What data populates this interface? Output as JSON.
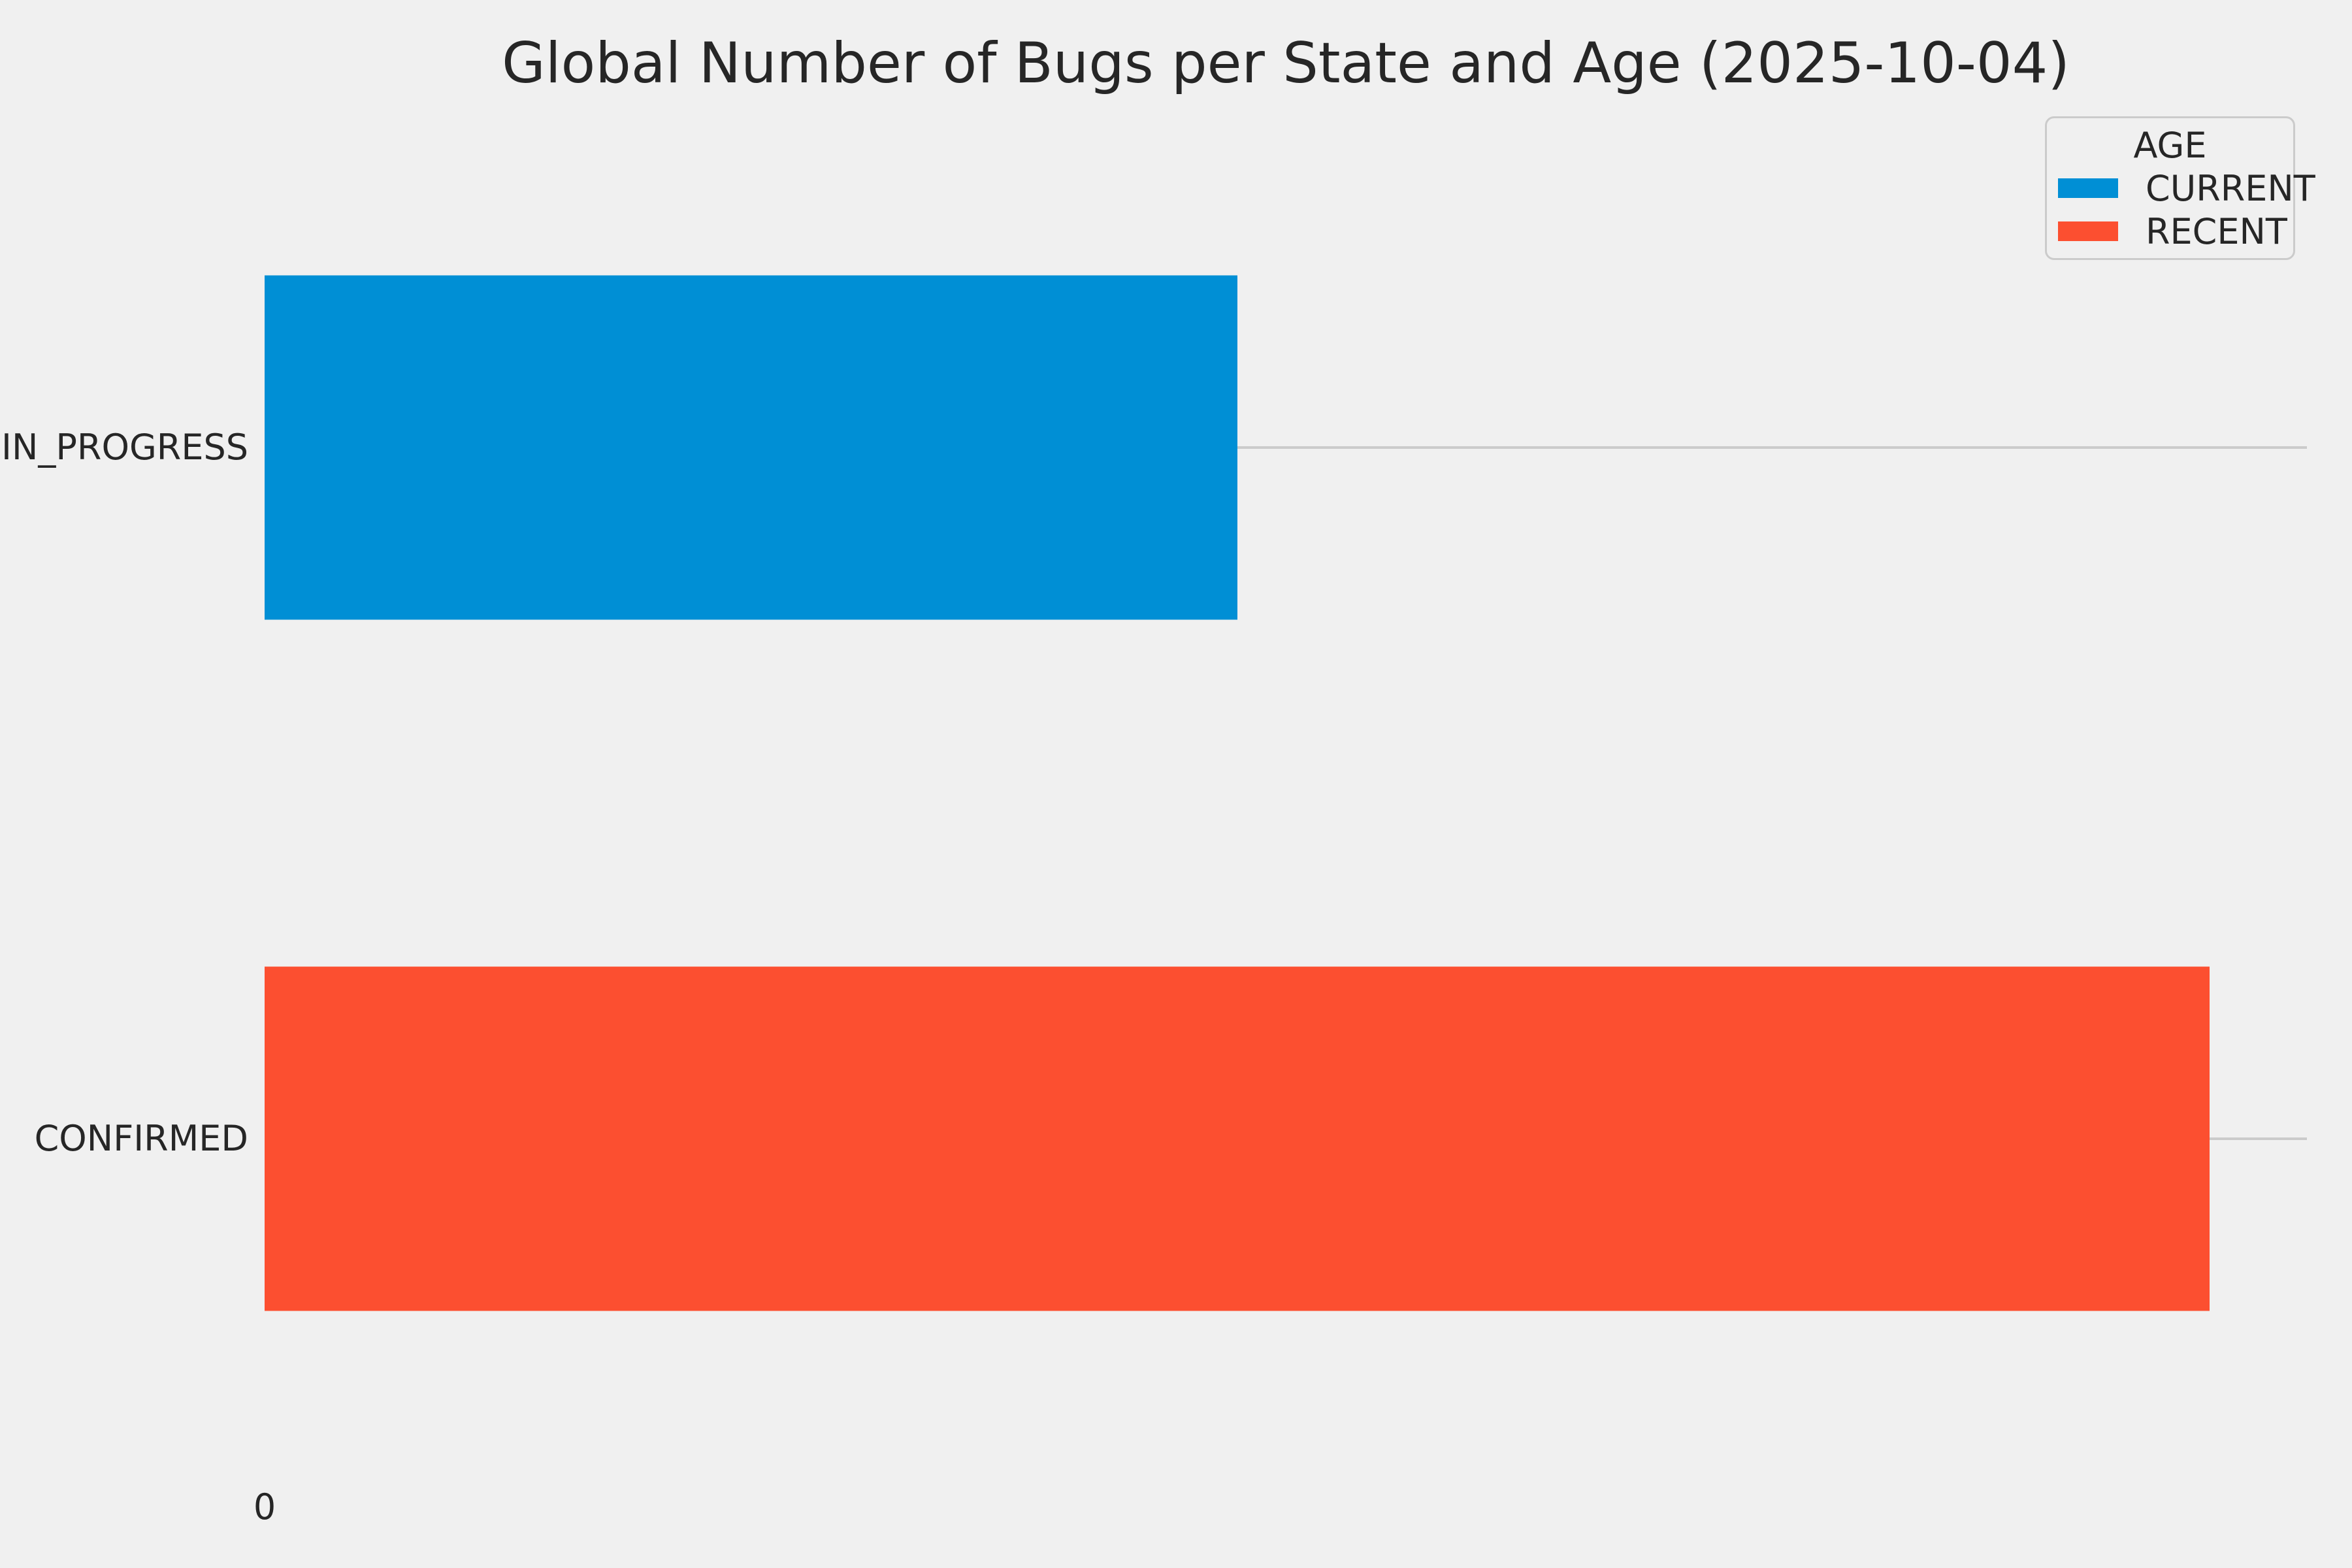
{
  "chart_data": {
    "type": "bar",
    "orientation": "horizontal",
    "title": "Global Number of Bugs per State and Age (2025-10-04)",
    "categories": [
      "IN_PROGRESS",
      "CONFIRMED"
    ],
    "series": [
      {
        "name": "CURRENT",
        "color": "#008fd5",
        "values": [
          1,
          0
        ]
      },
      {
        "name": "RECENT",
        "color": "#fc4f30",
        "values": [
          0,
          2
        ]
      }
    ],
    "xlabel": "",
    "ylabel": "",
    "xlim": [
      0,
      2.1
    ],
    "bar_height_fraction": 0.5,
    "xticks": [
      {
        "value": 0,
        "label": "0"
      }
    ],
    "grid": "horizontal-at-category-centers",
    "legend": {
      "title": "AGE",
      "position": "upper-right",
      "entries": [
        {
          "label": "CURRENT",
          "color": "#008fd5"
        },
        {
          "label": "RECENT",
          "color": "#fc4f30"
        }
      ]
    },
    "colors": {
      "background": "#f0f0f0",
      "gridline": "#cbcbcb",
      "text": "#262626"
    }
  }
}
